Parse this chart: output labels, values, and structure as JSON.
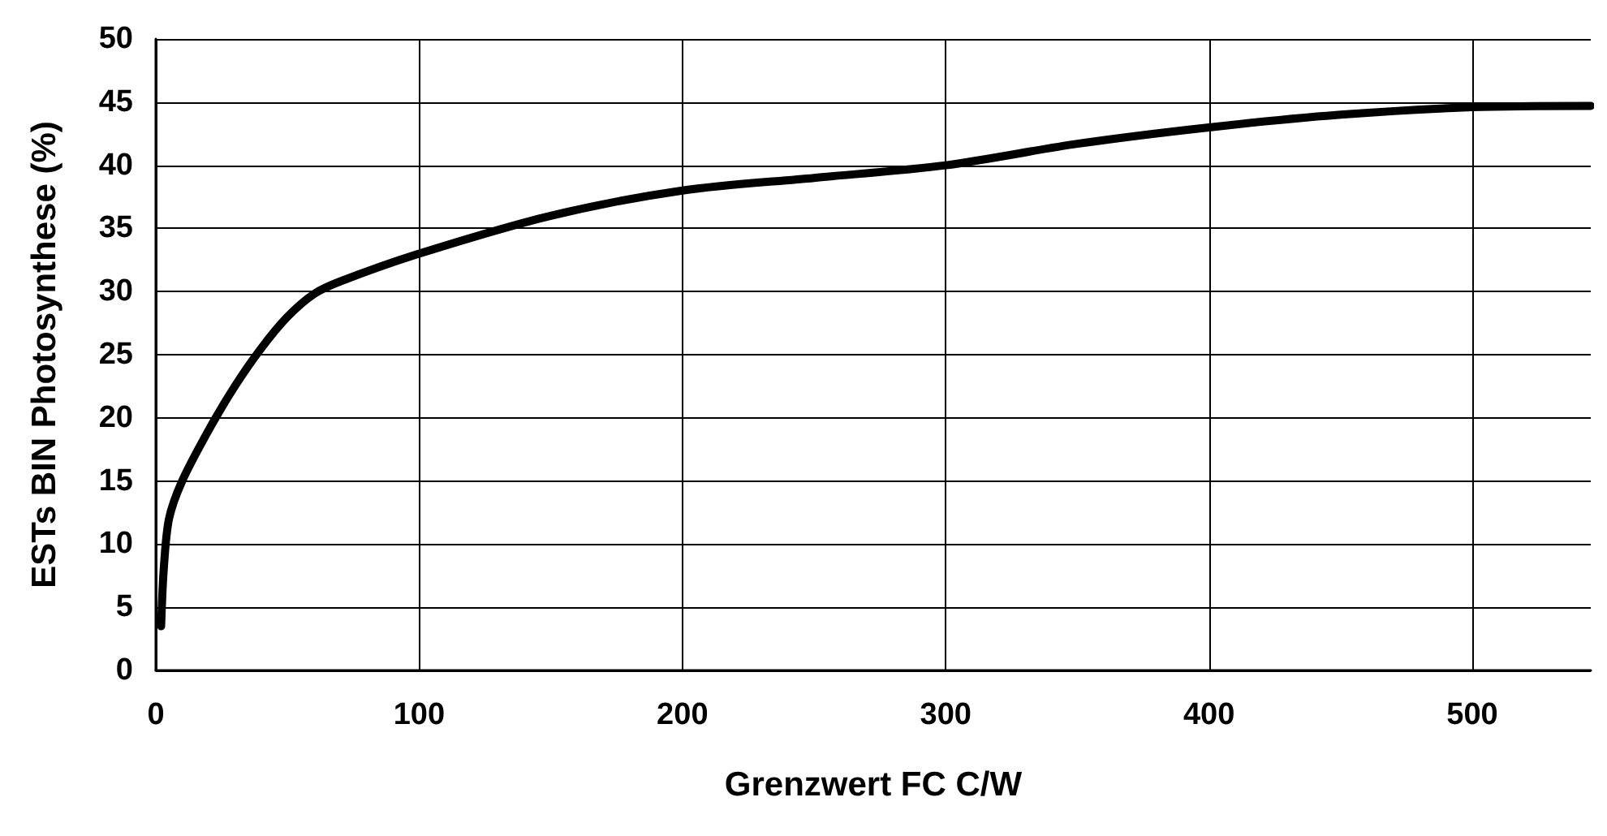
{
  "chart_data": {
    "type": "line",
    "xlabel": "Grenzwert FC C/W",
    "ylabel": "ESTs BIN Photosynthese (%)",
    "series": [
      {
        "color": "#000000",
        "x": [
          2,
          3,
          5,
          10,
          20,
          30,
          40,
          50,
          60,
          70,
          100,
          150,
          200,
          250,
          300,
          350,
          400,
          450,
          500,
          545
        ],
        "values": [
          3.5,
          8,
          12,
          15,
          19,
          22.5,
          25.5,
          28,
          29.8,
          30.8,
          33,
          36,
          38,
          39,
          40,
          41.7,
          43,
          44,
          44.6,
          44.7
        ]
      }
    ],
    "xlim": [
      0,
      545
    ],
    "xticks": [
      0,
      100,
      200,
      300,
      400,
      500
    ],
    "ylim": [
      0,
      50
    ],
    "yticks": [
      0,
      5,
      10,
      15,
      20,
      25,
      30,
      35,
      40,
      45,
      50
    ],
    "grid": true,
    "marker": "none",
    "line_style": "solid"
  }
}
